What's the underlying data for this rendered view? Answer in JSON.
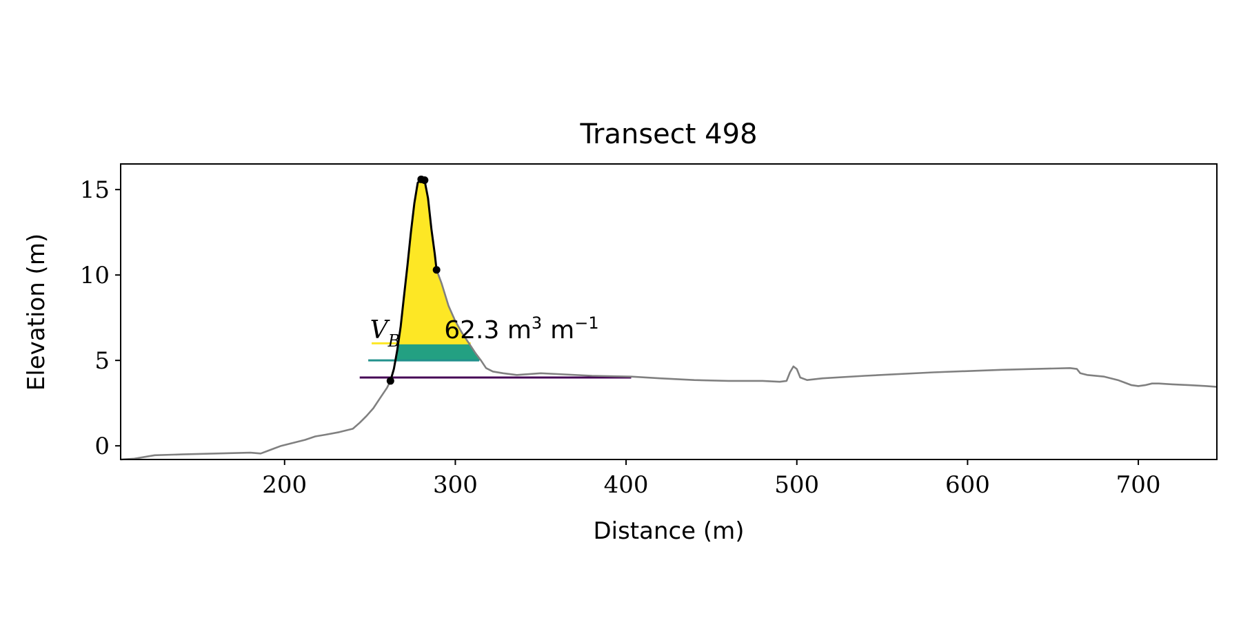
{
  "chart_data": {
    "type": "line",
    "title": "Transect 498",
    "xlabel": "Distance (m)",
    "ylabel": "Elevation (m)",
    "xlim": [
      104,
      746
    ],
    "ylim": [
      -0.8,
      16.5
    ],
    "xticks": [
      200,
      300,
      400,
      500,
      600,
      700
    ],
    "yticks": [
      0,
      5,
      10,
      15
    ],
    "xtick_labels": [
      "200",
      "300",
      "400",
      "500",
      "600",
      "700"
    ],
    "ytick_labels": [
      "0",
      "5",
      "10",
      "15"
    ],
    "grid": false,
    "series": [
      {
        "role": "profile",
        "color": "#808080",
        "x": [
          104,
          112,
          118,
          124,
          140,
          160,
          180,
          186,
          190,
          194,
          198,
          202,
          206,
          212,
          218,
          224,
          232,
          240,
          244,
          248,
          252,
          256,
          260,
          262
        ],
        "y": [
          -0.8,
          -0.75,
          -0.65,
          -0.55,
          -0.5,
          -0.45,
          -0.4,
          -0.45,
          -0.3,
          -0.15,
          0.0,
          0.1,
          0.2,
          0.35,
          0.55,
          0.65,
          0.8,
          1.0,
          1.35,
          1.75,
          2.2,
          2.8,
          3.4,
          3.8
        ]
      },
      {
        "role": "profile",
        "color": "#808080",
        "x": [
          289,
          292,
          296,
          300,
          304,
          308,
          312,
          315,
          318,
          322,
          328,
          336,
          350,
          360,
          380,
          403,
          420,
          440,
          460,
          480,
          490,
          494,
          496,
          498,
          500,
          502,
          506,
          515,
          540,
          580,
          620,
          660,
          664,
          666,
          670,
          680,
          688,
          692,
          696,
          700,
          704,
          708,
          712,
          720,
          730,
          740,
          746
        ],
        "y": [
          10.3,
          9.5,
          8.2,
          7.3,
          6.6,
          6.0,
          5.4,
          5.0,
          4.55,
          4.35,
          4.25,
          4.15,
          4.25,
          4.2,
          4.1,
          4.05,
          3.95,
          3.85,
          3.8,
          3.8,
          3.75,
          3.8,
          4.3,
          4.65,
          4.5,
          4.0,
          3.85,
          3.95,
          4.1,
          4.3,
          4.45,
          4.55,
          4.5,
          4.25,
          4.15,
          4.05,
          3.85,
          3.7,
          3.55,
          3.5,
          3.55,
          3.65,
          3.65,
          3.6,
          3.55,
          3.5,
          3.45
        ]
      },
      {
        "role": "dune",
        "color": "#000000",
        "x": [
          262,
          264,
          266,
          268,
          270,
          272,
          274,
          276,
          278,
          280,
          282,
          284,
          286,
          288,
          289
        ],
        "y": [
          3.8,
          4.5,
          5.6,
          7.0,
          8.8,
          10.6,
          12.5,
          14.2,
          15.4,
          15.6,
          15.55,
          14.5,
          12.7,
          11.2,
          10.3
        ]
      }
    ],
    "points": {
      "color": "#000000",
      "x": [
        262,
        280,
        282,
        289
      ],
      "y": [
        3.8,
        15.6,
        15.55,
        10.3
      ]
    },
    "levels": [
      {
        "y": 4.0,
        "x_start": 244,
        "x_end": 403,
        "color": "#440154",
        "fill": "#4a1f6e"
      },
      {
        "y": 5.0,
        "x_start": 249,
        "x_end": 314,
        "color": "#21918c",
        "fill": "#23a082"
      },
      {
        "y": 6.0,
        "x_start": 251,
        "x_end": 309,
        "color": "#fde725",
        "fill": "#fde725"
      }
    ],
    "annotation": {
      "symbol": "V",
      "subscript": "B",
      "text": "62.3 m",
      "exp1": "3",
      "unit": "m",
      "exp2": "−1",
      "x": 250,
      "y": 6.3
    }
  }
}
